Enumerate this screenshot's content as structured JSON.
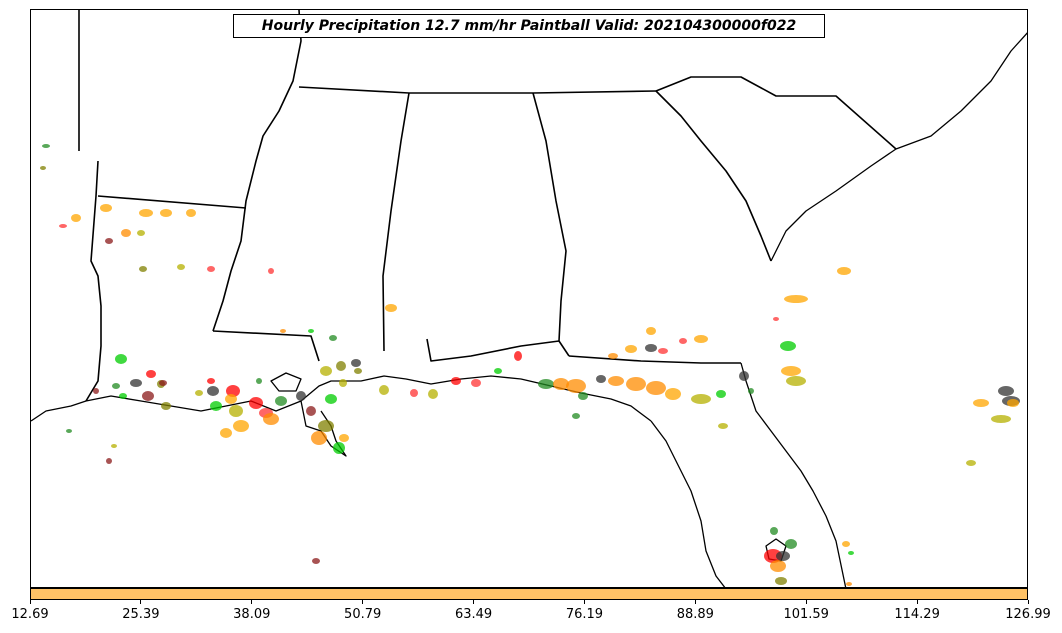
{
  "title": "Hourly Precipitation 12.7 mm/hr Paintball Valid: 202104300000f022",
  "colorbar": {
    "color": "#ffc266",
    "ticks": [
      "12.69",
      "25.39",
      "38.09",
      "50.79",
      "63.49",
      "76.19",
      "88.89",
      "101.59",
      "114.29",
      "126.99"
    ]
  },
  "colors": {
    "boundaries": "#000000",
    "paintball_members": [
      "#ff0000",
      "#ff8c00",
      "#ffa500",
      "#00cc00",
      "#228b22",
      "#808000",
      "#b5b000",
      "#333333",
      "#8b1a1a",
      "#ff3333"
    ]
  }
}
